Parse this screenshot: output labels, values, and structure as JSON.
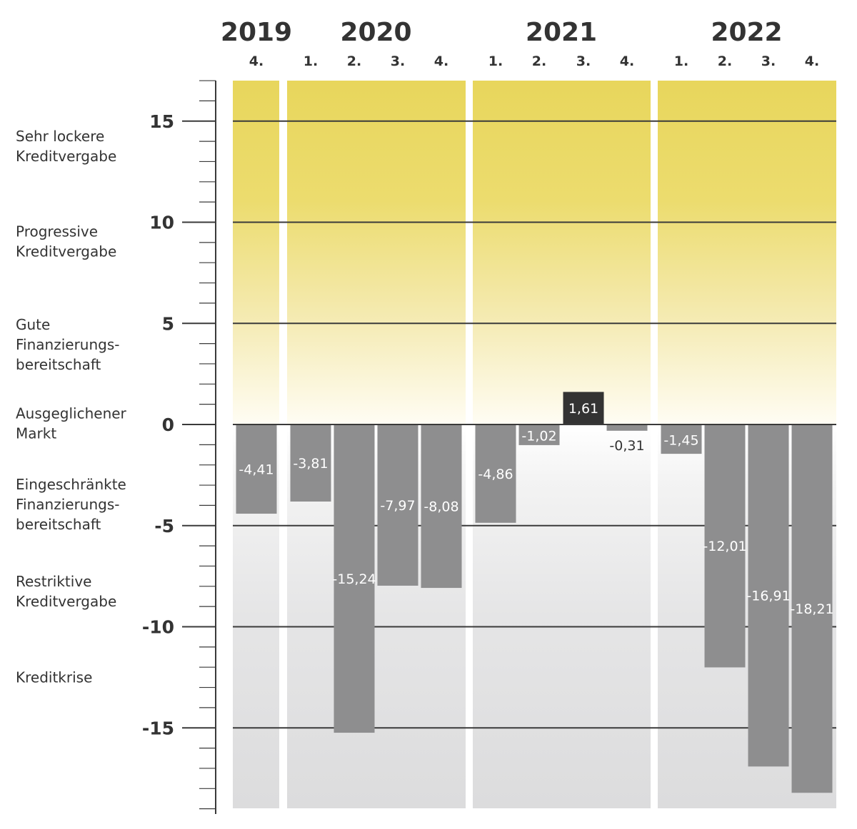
{
  "chart_data": {
    "type": "bar",
    "years": [
      {
        "label": "2019",
        "quarters": [
          "4."
        ],
        "values": [
          -4.41
        ],
        "value_labels": [
          "-4,41"
        ]
      },
      {
        "label": "2020",
        "quarters": [
          "1.",
          "2.",
          "3.",
          "4."
        ],
        "values": [
          -3.81,
          -15.24,
          -7.97,
          -8.08
        ],
        "value_labels": [
          "-3,81",
          "-15,24",
          "-7,97",
          "-8,08"
        ]
      },
      {
        "label": "2021",
        "quarters": [
          "1.",
          "2.",
          "3.",
          "4."
        ],
        "values": [
          -4.86,
          -1.02,
          1.61,
          -0.31
        ],
        "value_labels": [
          "-4,86",
          "-1,02",
          "1,61",
          "-0,31"
        ]
      },
      {
        "label": "2022",
        "quarters": [
          "1.",
          "2.",
          "3.",
          "4."
        ],
        "values": [
          -1.45,
          -12.01,
          -16.91,
          -18.21
        ],
        "value_labels": [
          "-1,45",
          "-12,01",
          "-16,91",
          "-18,21"
        ]
      }
    ],
    "ylim": [
      -19,
      17
    ],
    "y_ticks": [
      {
        "value": 15,
        "label": "15"
      },
      {
        "value": 10,
        "label": "10"
      },
      {
        "value": 5,
        "label": "5"
      },
      {
        "value": 0,
        "label": "0"
      },
      {
        "value": -5,
        "label": "-5"
      },
      {
        "value": -10,
        "label": "-10"
      },
      {
        "value": -15,
        "label": "-15"
      }
    ],
    "zones": [
      {
        "lines": [
          "Sehr lockere",
          "Kreditvergabe"
        ],
        "center": 13.75
      },
      {
        "lines": [
          "Progressive",
          "Kreditvergabe"
        ],
        "center": 9.05
      },
      {
        "lines": [
          "Gute",
          "Finanzierungs-",
          "bereitschaft"
        ],
        "center": 3.95
      },
      {
        "lines": [
          "Ausgeglichener",
          "Markt"
        ],
        "center": 0.05
      },
      {
        "lines": [
          "Eingeschränkte",
          "Finanzierungs-",
          "bereitschaft"
        ],
        "center": -3.95
      },
      {
        "lines": [
          "Restriktive",
          "Kreditvergabe"
        ],
        "center": -8.25
      },
      {
        "lines": [
          "Kreditkrise"
        ],
        "center": -12.5
      }
    ],
    "grid": true,
    "colors": {
      "bar_negative": "#8e8e8f",
      "bar_positive": "#333333",
      "band_positive": "#e9d95c",
      "band_negative": "#dcdcdd",
      "gridline": "#3a3a3a",
      "text": "#333333"
    }
  }
}
